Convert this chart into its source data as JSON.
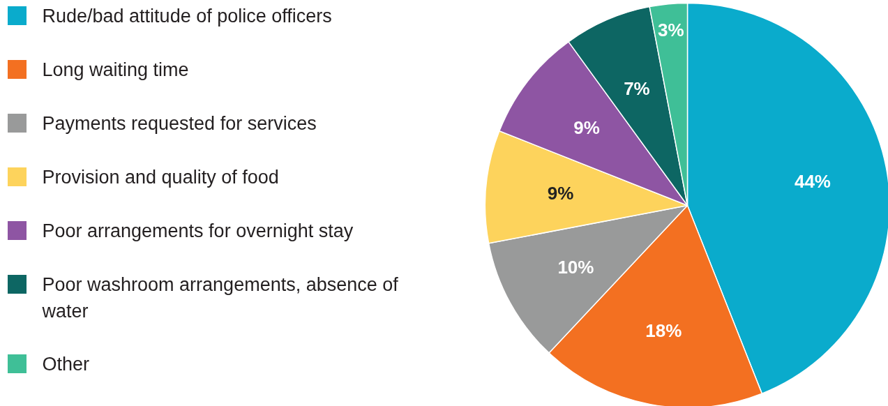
{
  "chart_data": {
    "type": "pie",
    "categories": [
      "Rude/bad attitude of police officers",
      "Long waiting time",
      "Payments requested for services",
      "Provision and quality of food",
      "Poor arrangements for overnight stay",
      "Poor washroom arrangements, absence of water",
      "Other"
    ],
    "values": [
      44,
      18,
      10,
      9,
      9,
      7,
      3
    ],
    "colors": [
      "#0aabcc",
      "#f37021",
      "#999a9a",
      "#fdd35c",
      "#8e55a3",
      "#0d6663",
      "#3fbf97"
    ],
    "value_labels": [
      "44%",
      "18%",
      "10%",
      "9%",
      "9%",
      "7%",
      "3%"
    ],
    "legend": "left"
  }
}
